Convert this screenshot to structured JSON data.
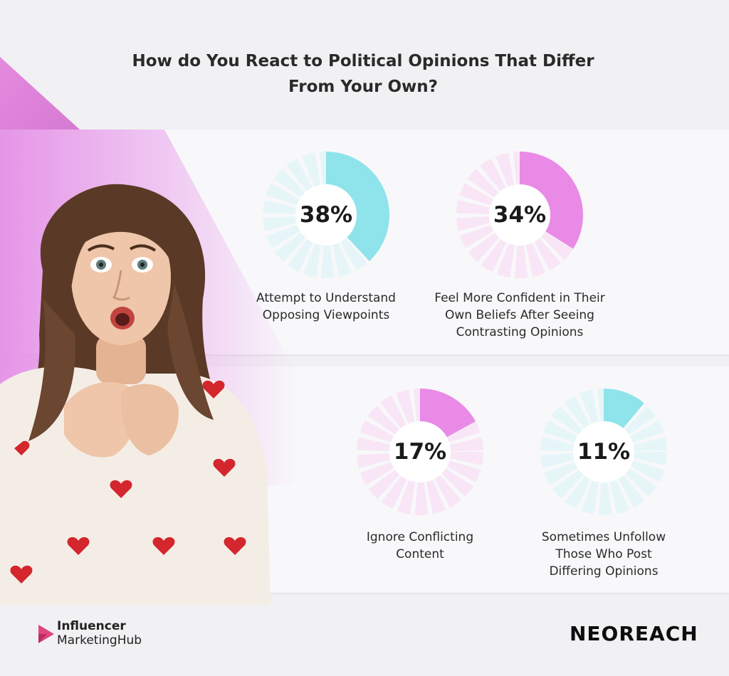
{
  "title_line1": "How do You React to Political Opinions That Differ",
  "title_line2": "From Your Own?",
  "chart_data": {
    "type": "pie",
    "title": "How do You React to Political Opinions That Differ From Your Own?",
    "items": [
      {
        "value": 38,
        "label": "38%",
        "caption": [
          "Attempt to Understand",
          "Opposing Viewpoints"
        ],
        "color": "#8fe3ea",
        "track": "#e6f6f8"
      },
      {
        "value": 34,
        "label": "34%",
        "caption": [
          "Feel More Confident in Their",
          "Own Beliefs After Seeing",
          "Contrasting Opinions"
        ],
        "color": "#e98ae6",
        "track": "#f8e6f6"
      },
      {
        "value": 17,
        "label": "17%",
        "caption": [
          "Ignore Conflicting",
          "Content"
        ],
        "color": "#e98ae6",
        "track": "#f8e6f6"
      },
      {
        "value": 11,
        "label": "11%",
        "caption": [
          "Sometimes Unfollow",
          "Those Who Post",
          "Differing Opinions"
        ],
        "color": "#8fe3ea",
        "track": "#e6f6f8"
      }
    ]
  },
  "logos": {
    "imh_line1": "Influencer",
    "imh_line2": "MarketingHub",
    "neoreach": "NEOREACH"
  },
  "colors": {
    "accent_pink": "#e98ae6",
    "accent_cyan": "#8fe3ea",
    "imh_logo": "#e0457b"
  }
}
